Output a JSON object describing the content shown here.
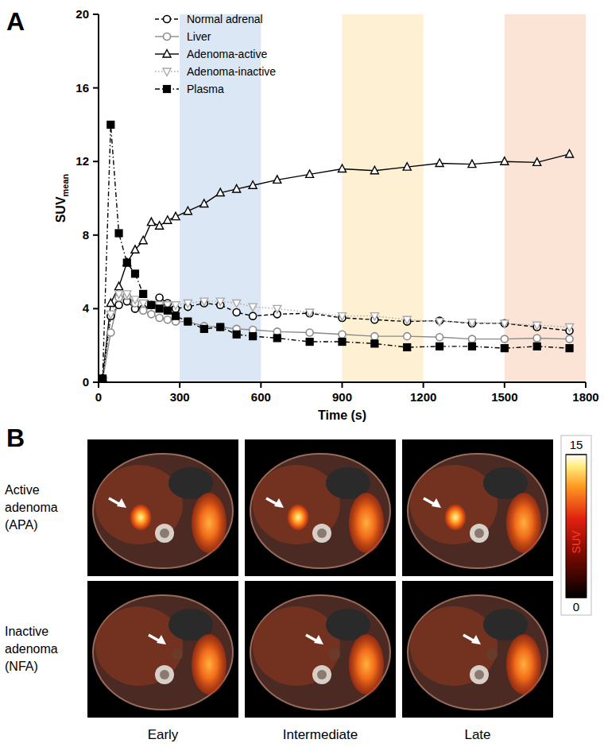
{
  "chart_data": {
    "type": "line",
    "title": "A",
    "x_label": "Time (s)",
    "y_label": "SUVmean",
    "x": [
      15,
      45,
      75,
      105,
      135,
      165,
      195,
      225,
      255,
      285,
      330,
      390,
      450,
      510,
      570,
      660,
      780,
      900,
      1020,
      1140,
      1260,
      1380,
      1500,
      1620,
      1740
    ],
    "series": [
      {
        "name": "Normal adrenal",
        "color": "#000000",
        "marker": "open-circle",
        "line_style": "dashed",
        "values": [
          0.2,
          3.6,
          4.2,
          4.4,
          4.0,
          4.0,
          4.2,
          4.6,
          4.3,
          4.0,
          4.1,
          4.3,
          4.2,
          3.8,
          3.6,
          3.7,
          3.75,
          3.5,
          3.4,
          3.3,
          3.35,
          3.2,
          3.2,
          3.0,
          2.8
        ]
      },
      {
        "name": "Liver",
        "color": "#8a8a8a",
        "marker": "open-circle",
        "line_style": "solid",
        "values": [
          0.1,
          2.7,
          4.6,
          4.7,
          4.3,
          3.9,
          3.7,
          3.5,
          3.4,
          3.3,
          3.3,
          3.05,
          3.0,
          2.9,
          2.85,
          2.75,
          2.7,
          2.6,
          2.5,
          2.5,
          2.45,
          2.35,
          2.35,
          2.4,
          2.35
        ]
      },
      {
        "name": "Adenoma-active",
        "color": "#000000",
        "marker": "open-triangle",
        "line_style": "solid",
        "values": [
          0.2,
          4.3,
          5.2,
          6.5,
          7.2,
          7.7,
          8.7,
          8.5,
          8.8,
          9.0,
          9.3,
          9.7,
          10.3,
          10.5,
          10.7,
          11.0,
          11.3,
          11.6,
          11.5,
          11.7,
          11.9,
          11.85,
          12.0,
          11.95,
          12.4
        ]
      },
      {
        "name": "Adenoma-inactive",
        "color": "#a8a8a8",
        "marker": "open-triangle-down",
        "line_style": "dotted",
        "values": [
          0.1,
          3.7,
          4.8,
          4.8,
          4.5,
          4.3,
          4.2,
          4.2,
          4.2,
          4.2,
          4.3,
          4.4,
          4.4,
          4.3,
          4.1,
          4.0,
          3.8,
          3.6,
          3.6,
          3.4,
          3.3,
          3.25,
          3.2,
          3.1,
          3.0
        ]
      },
      {
        "name": "Plasma",
        "color": "#000000",
        "marker": "filled-square",
        "line_style": "dashdot",
        "values": [
          0.2,
          14.0,
          8.1,
          6.5,
          5.9,
          4.8,
          4.2,
          4.0,
          3.9,
          3.6,
          3.3,
          2.9,
          3.0,
          2.6,
          2.5,
          2.4,
          2.2,
          2.2,
          2.1,
          1.9,
          1.95,
          1.95,
          1.85,
          1.95,
          1.85
        ]
      }
    ],
    "xlim": [
      0,
      1800
    ],
    "xticks": [
      0,
      300,
      600,
      900,
      1200,
      1500,
      1800
    ],
    "ylim": [
      0,
      20
    ],
    "yticks": [
      0,
      4,
      8,
      12,
      16,
      20
    ],
    "shaded_ranges": [
      {
        "start": 300,
        "end": 600,
        "color": "#dbe7f4"
      },
      {
        "start": 900,
        "end": 1200,
        "color": "#fdf0d3"
      },
      {
        "start": 1500,
        "end": 1800,
        "color": "#fbe4d6"
      }
    ],
    "grid": false,
    "legend": "upper left"
  },
  "image_panel": {
    "label": "B",
    "rows": [
      "Active adenoma (APA)",
      "Inactive adenoma (NFA)"
    ],
    "columns": [
      "Early",
      "Intermediate",
      "Late"
    ],
    "colorbar": {
      "label": "SUV",
      "range": [
        0,
        15
      ],
      "ticks": [
        0,
        15
      ]
    }
  }
}
